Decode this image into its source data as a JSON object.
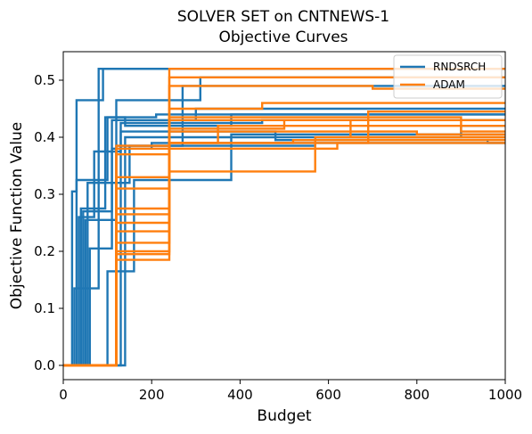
{
  "chart_data": {
    "type": "line",
    "title": "SOLVER SET on CNTNEWS-1",
    "subtitle": "Objective Curves",
    "xlabel": "Budget",
    "ylabel": "Objective Function Value",
    "xlim": [
      0,
      1000
    ],
    "ylim": [
      -0.025,
      0.55
    ],
    "x_ticks": [
      0,
      200,
      400,
      600,
      800,
      1000
    ],
    "y_ticks": [
      0.0,
      0.1,
      0.2,
      0.3,
      0.4,
      0.5
    ],
    "y_tick_labels": [
      "0.0",
      "0.1",
      "0.2",
      "0.3",
      "0.4",
      "0.5"
    ],
    "legend_position": "top-right",
    "grid": false,
    "colors": {
      "RNDSRCH": "#1f77b4",
      "ADAM": "#ff7f0e"
    },
    "series": [
      {
        "name": "RNDSRCH",
        "curves": [
          {
            "x": [
              0,
              20,
              20,
              30,
              30,
              90,
              90,
              1000
            ],
            "y": [
              0,
              0,
              0.305,
              0.305,
              0.465,
              0.465,
              0.52,
              0.52
            ]
          },
          {
            "x": [
              0,
              25,
              25,
              80,
              80,
              1000
            ],
            "y": [
              0,
              0,
              0.135,
              0.135,
              0.52,
              0.52
            ]
          },
          {
            "x": [
              0,
              30,
              30,
              100,
              100,
              210,
              210,
              1000
            ],
            "y": [
              0,
              0,
              0.325,
              0.325,
              0.435,
              0.435,
              0.44,
              0.44
            ]
          },
          {
            "x": [
              0,
              35,
              35,
              70,
              70,
              130,
              130,
              450,
              450,
              1000
            ],
            "y": [
              0,
              0,
              0.26,
              0.26,
              0.375,
              0.375,
              0.425,
              0.425,
              0.43,
              0.43
            ]
          },
          {
            "x": [
              0,
              40,
              40,
              95,
              95,
              140,
              140,
              380,
              380,
              1000
            ],
            "y": [
              0,
              0,
              0.275,
              0.275,
              0.435,
              0.435,
              0.42,
              0.42,
              0.44,
              0.44
            ]
          },
          {
            "x": [
              0,
              45,
              45,
              110,
              110,
              300,
              300,
              1000
            ],
            "y": [
              0,
              0,
              0.27,
              0.27,
              0.43,
              0.43,
              0.45,
              0.45
            ]
          },
          {
            "x": [
              0,
              50,
              50,
              120,
              120,
              310,
              310,
              1000
            ],
            "y": [
              0,
              0,
              0.255,
              0.255,
              0.465,
              0.465,
              0.505,
              0.505
            ]
          },
          {
            "x": [
              0,
              55,
              55,
              150,
              150,
              570,
              570,
              1000
            ],
            "y": [
              0,
              0,
              0.32,
              0.32,
              0.385,
              0.385,
              0.4,
              0.4
            ]
          },
          {
            "x": [
              0,
              60,
              60,
              110,
              110,
              200,
              200,
              1000
            ],
            "y": [
              0,
              0,
              0.205,
              0.205,
              0.38,
              0.38,
              0.39,
              0.39
            ]
          },
          {
            "x": [
              0,
              100,
              100,
              160,
              160,
              380,
              380,
              1000
            ],
            "y": [
              0,
              0,
              0.165,
              0.165,
              0.325,
              0.325,
              0.405,
              0.405
            ]
          },
          {
            "x": [
              0,
              120,
              120,
              270,
              270,
              1000
            ],
            "y": [
              0,
              0,
              0.385,
              0.385,
              0.49,
              0.49
            ]
          },
          {
            "x": [
              0,
              130,
              130,
              480,
              480,
              960,
              960,
              1000
            ],
            "y": [
              0,
              0,
              0.41,
              0.41,
              0.395,
              0.395,
              0.39,
              0.39
            ]
          },
          {
            "x": [
              0,
              140,
              140,
              900,
              900,
              1000
            ],
            "y": [
              0,
              0,
              0.4,
              0.4,
              0.42,
              0.42
            ]
          }
        ]
      },
      {
        "name": "ADAM",
        "curves": [
          {
            "x": [
              0,
              120,
              120,
              240,
              240,
              1000
            ],
            "y": [
              0,
              0,
              0.38,
              0.38,
              0.52,
              0.52
            ]
          },
          {
            "x": [
              0,
              120,
              120,
              240,
              240,
              1000
            ],
            "y": [
              0,
              0,
              0.235,
              0.235,
              0.505,
              0.505
            ]
          },
          {
            "x": [
              0,
              120,
              120,
              240,
              240,
              700,
              700,
              1000
            ],
            "y": [
              0,
              0,
              0.275,
              0.275,
              0.49,
              0.49,
              0.485,
              0.485
            ]
          },
          {
            "x": [
              0,
              120,
              120,
              240,
              240,
              450,
              450,
              1000
            ],
            "y": [
              0,
              0,
              0.31,
              0.31,
              0.45,
              0.45,
              0.46,
              0.46
            ]
          },
          {
            "x": [
              0,
              120,
              120,
              240,
              240,
              500,
              500,
              1000
            ],
            "y": [
              0,
              0,
              0.265,
              0.265,
              0.415,
              0.415,
              0.43,
              0.43
            ]
          },
          {
            "x": [
              0,
              120,
              120,
              240,
              240,
              620,
              620,
              1000
            ],
            "y": [
              0,
              0,
              0.2,
              0.2,
              0.38,
              0.38,
              0.39,
              0.39
            ]
          },
          {
            "x": [
              0,
              120,
              120,
              240,
              240,
              800,
              800,
              1000
            ],
            "y": [
              0,
              0,
              0.195,
              0.195,
              0.41,
              0.41,
              0.405,
              0.405
            ]
          },
          {
            "x": [
              0,
              120,
              120,
              240,
              240,
              350,
              350,
              1000
            ],
            "y": [
              0,
              0,
              0.25,
              0.25,
              0.39,
              0.39,
              0.42,
              0.42
            ]
          },
          {
            "x": [
              0,
              120,
              120,
              240,
              240,
              690,
              690,
              1000
            ],
            "y": [
              0,
              0,
              0.385,
              0.385,
              0.39,
              0.39,
              0.445,
              0.445
            ]
          },
          {
            "x": [
              0,
              120,
              120,
              240,
              240,
              570,
              570,
              1000
            ],
            "y": [
              0,
              0,
              0.37,
              0.37,
              0.34,
              0.34,
              0.4,
              0.4
            ]
          },
          {
            "x": [
              0,
              120,
              120,
              240,
              240,
              900,
              900,
              1000
            ],
            "y": [
              0,
              0,
              0.215,
              0.215,
              0.435,
              0.435,
              0.41,
              0.41
            ]
          },
          {
            "x": [
              0,
              120,
              120,
              240,
              240,
              520,
              520,
              1000
            ],
            "y": [
              0,
              0,
              0.185,
              0.185,
              0.39,
              0.39,
              0.395,
              0.395
            ]
          },
          {
            "x": [
              0,
              120,
              120,
              240,
              240,
              650,
              650,
              1000
            ],
            "y": [
              0,
              0,
              0.33,
              0.33,
              0.43,
              0.43,
              0.4,
              0.4
            ]
          }
        ]
      }
    ]
  }
}
